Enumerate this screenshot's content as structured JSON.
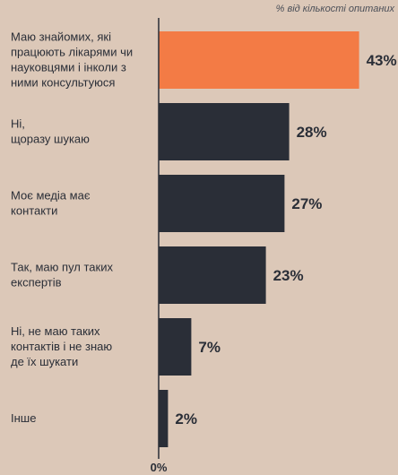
{
  "note": "% від кількості опитаних",
  "chart_data": {
    "type": "bar",
    "orientation": "horizontal",
    "categories": [
      "Маю знайомих, які працюють лікарями чи науковцями і інколи з ними консультуюся",
      "Ні, щоразу шукаю",
      "Моє медіа має контакти",
      "Так, маю пул таких експертів",
      "Ні, не маю таких контактів і не знаю де їх шукати",
      "Інше"
    ],
    "category_lines": [
      [
        "Маю знайомих, які",
        "працюють лікарями чи",
        "науковцями і інколи з",
        "ними консультуюся"
      ],
      [
        "Ні,",
        "щоразу шукаю"
      ],
      [
        "Моє медіа має",
        "контакти"
      ],
      [
        "Так, маю пул таких",
        "експертів"
      ],
      [
        "Ні, не маю таких",
        "контактів і не знаю",
        "де їх шукати"
      ],
      [
        "Інше"
      ]
    ],
    "values": [
      43,
      28,
      27,
      23,
      7,
      2
    ],
    "value_labels": [
      "43%",
      "28%",
      "27%",
      "23%",
      "7%",
      "2%"
    ],
    "xtick_labels": [
      "0%"
    ],
    "xlim": [
      0,
      50
    ],
    "colors": {
      "highlight": "#f37b45",
      "bar": "#2a2e37",
      "text": "#2a2e37",
      "axis": "#2a2e37",
      "background": "#dcc8b8"
    },
    "highlight_index": 0
  }
}
